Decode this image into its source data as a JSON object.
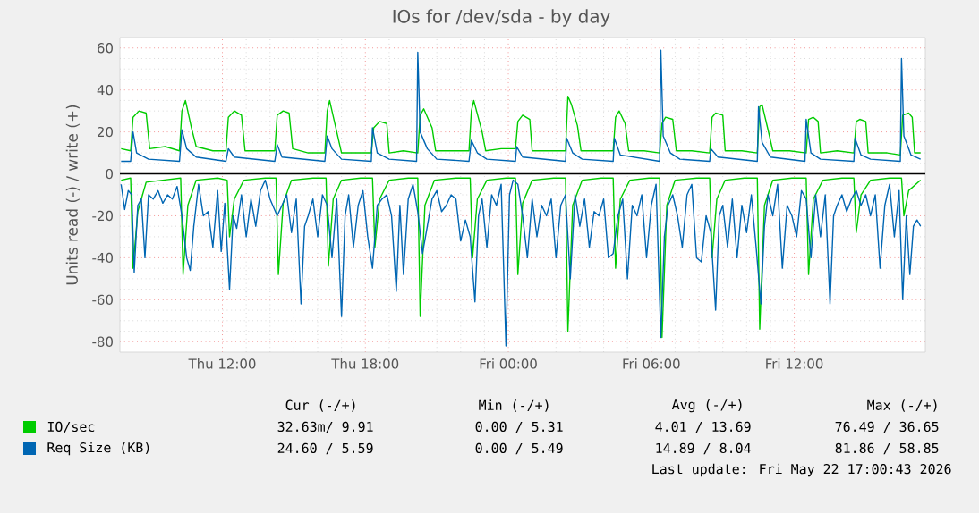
{
  "chart_data": {
    "type": "line",
    "title": "IOs for /dev/sda - by day",
    "ylabel": "Units read (-) / write (+)",
    "xlim": [
      "2026-05-21T07:42",
      "2026-05-22T17:30"
    ],
    "ylim": [
      -85,
      65
    ],
    "xticks": [
      {
        "value": "2026-05-21T12:00",
        "label": "Thu 12:00"
      },
      {
        "value": "2026-05-21T18:00",
        "label": "Thu 18:00"
      },
      {
        "value": "2026-05-22T00:00",
        "label": "Fri 00:00"
      },
      {
        "value": "2026-05-22T06:00",
        "label": "Fri 06:00"
      },
      {
        "value": "2026-05-22T12:00",
        "label": "Fri 12:00"
      }
    ],
    "yticks": [
      -80,
      -60,
      -40,
      -20,
      0,
      20,
      40,
      60
    ],
    "grid": true,
    "legend": "bottom",
    "marker": "none",
    "line_style": "solid",
    "ref_lines": [
      {
        "axis": "y",
        "value": 0,
        "color": "#000000"
      }
    ],
    "annotations": [
      "Cur (-/+)",
      "Min (-/+)",
      "Avg (-/+)",
      "Max (-/+)",
      "32.63m/  9.91",
      "0.00 /  5.31",
      "4.01 / 13.69",
      "76.49 / 36.65",
      "24.60 /  5.59",
      "0.00 /  5.49",
      "14.89 /  8.04",
      "81.86 / 58.85",
      "Last update: Fri May 22 17:00:43 2026"
    ],
    "series": [
      {
        "name": "IO/sec",
        "color": "#00cc00",
        "x": [
          "2026-05-21T07:45",
          "2026-05-21T08:09",
          "2026-05-21T08:15",
          "2026-05-21T08:30",
          "2026-05-21T08:48",
          "2026-05-21T08:57",
          "2026-05-21T09:36",
          "2026-05-21T10:12",
          "2026-05-21T10:18",
          "2026-05-21T10:27",
          "2026-05-21T10:42",
          "2026-05-21T10:54",
          "2026-05-21T11:36",
          "2026-05-21T12:09",
          "2026-05-21T12:15",
          "2026-05-21T12:30",
          "2026-05-21T12:48",
          "2026-05-21T12:57",
          "2026-05-21T13:36",
          "2026-05-21T14:12",
          "2026-05-21T14:18",
          "2026-05-21T14:33",
          "2026-05-21T14:48",
          "2026-05-21T14:57",
          "2026-05-21T15:36",
          "2026-05-21T16:18",
          "2026-05-21T16:24",
          "2026-05-21T16:30",
          "2026-05-21T16:48",
          "2026-05-21T17:00",
          "2026-05-21T17:36",
          "2026-05-21T18:15",
          "2026-05-21T18:21",
          "2026-05-21T18:36",
          "2026-05-21T18:54",
          "2026-05-21T19:00",
          "2026-05-21T19:36",
          "2026-05-21T20:12",
          "2026-05-21T20:18",
          "2026-05-21T20:27",
          "2026-05-21T20:48",
          "2026-05-21T20:57",
          "2026-05-21T21:36",
          "2026-05-21T22:21",
          "2026-05-21T22:27",
          "2026-05-21T22:33",
          "2026-05-21T22:54",
          "2026-05-21T23:03",
          "2026-05-21T23:42",
          "2026-05-22T00:18",
          "2026-05-22T00:24",
          "2026-05-22T00:36",
          "2026-05-22T00:54",
          "2026-05-22T01:00",
          "2026-05-22T01:42",
          "2026-05-22T02:24",
          "2026-05-22T02:30",
          "2026-05-22T02:39",
          "2026-05-22T02:54",
          "2026-05-22T03:03",
          "2026-05-22T03:42",
          "2026-05-22T04:24",
          "2026-05-22T04:30",
          "2026-05-22T04:39",
          "2026-05-22T04:54",
          "2026-05-22T05:03",
          "2026-05-22T05:42",
          "2026-05-22T06:21",
          "2026-05-22T06:27",
          "2026-05-22T06:36",
          "2026-05-22T06:54",
          "2026-05-22T07:03",
          "2026-05-22T07:42",
          "2026-05-22T08:27",
          "2026-05-22T08:33",
          "2026-05-22T08:42",
          "2026-05-22T09:00",
          "2026-05-22T09:06",
          "2026-05-22T09:48",
          "2026-05-22T10:27",
          "2026-05-22T10:33",
          "2026-05-22T10:39",
          "2026-05-22T10:54",
          "2026-05-22T11:06",
          "2026-05-22T11:48",
          "2026-05-22T12:30",
          "2026-05-22T12:36",
          "2026-05-22T12:48",
          "2026-05-22T13:00",
          "2026-05-22T13:06",
          "2026-05-22T13:48",
          "2026-05-22T14:30",
          "2026-05-22T14:36",
          "2026-05-22T14:45",
          "2026-05-22T15:00",
          "2026-05-22T15:06",
          "2026-05-22T15:54",
          "2026-05-22T16:27",
          "2026-05-22T16:33",
          "2026-05-22T16:48",
          "2026-05-22T16:57",
          "2026-05-22T17:03",
          "2026-05-22T17:18"
        ],
        "values": [
          12,
          11,
          27,
          30,
          29,
          12,
          13,
          11,
          30,
          35,
          22,
          13,
          11,
          11,
          27,
          30,
          28,
          11,
          11,
          11,
          28,
          30,
          29,
          12,
          10,
          10,
          30,
          35,
          20,
          10,
          10,
          10,
          22,
          25,
          24,
          10,
          11,
          10,
          28,
          31,
          22,
          11,
          11,
          11,
          30,
          35,
          20,
          11,
          12,
          12,
          25,
          28,
          26,
          11,
          11,
          11,
          37,
          33,
          23,
          11,
          11,
          11,
          27,
          30,
          24,
          11,
          11,
          10,
          24,
          27,
          26,
          11,
          11,
          10,
          27,
          29,
          28,
          11,
          11,
          10,
          32,
          33,
          21,
          11,
          11,
          10,
          26,
          27,
          25,
          10,
          11,
          10,
          25,
          26,
          25,
          10,
          10,
          9,
          28,
          29,
          27,
          10,
          10
        ]
      },
      {
        "name": "Req Size (KB)",
        "color": "#0066b3",
        "x": [
          "2026-05-21T07:45",
          "2026-05-21T08:09",
          "2026-05-21T08:15",
          "2026-05-21T08:24",
          "2026-05-21T08:54",
          "2026-05-21T10:12",
          "2026-05-21T10:18",
          "2026-05-21T10:30",
          "2026-05-21T10:54",
          "2026-05-21T12:09",
          "2026-05-21T12:15",
          "2026-05-21T12:30",
          "2026-05-21T14:12",
          "2026-05-21T14:18",
          "2026-05-21T14:30",
          "2026-05-21T16:18",
          "2026-05-21T16:24",
          "2026-05-21T16:36",
          "2026-05-21T17:00",
          "2026-05-21T18:15",
          "2026-05-21T18:18",
          "2026-05-21T18:30",
          "2026-05-21T19:00",
          "2026-05-21T20:09",
          "2026-05-21T20:12",
          "2026-05-21T20:18",
          "2026-05-21T20:36",
          "2026-05-21T21:00",
          "2026-05-21T22:21",
          "2026-05-21T22:27",
          "2026-05-21T22:42",
          "2026-05-21T23:06",
          "2026-05-22T00:18",
          "2026-05-22T00:21",
          "2026-05-22T00:36",
          "2026-05-22T02:24",
          "2026-05-22T02:27",
          "2026-05-22T02:42",
          "2026-05-22T03:06",
          "2026-05-22T04:24",
          "2026-05-22T04:27",
          "2026-05-22T04:42",
          "2026-05-22T06:21",
          "2026-05-22T06:24",
          "2026-05-22T06:30",
          "2026-05-22T06:48",
          "2026-05-22T07:12",
          "2026-05-22T08:27",
          "2026-05-22T08:30",
          "2026-05-22T08:48",
          "2026-05-22T10:27",
          "2026-05-22T10:30",
          "2026-05-22T10:39",
          "2026-05-22T11:00",
          "2026-05-22T12:27",
          "2026-05-22T12:30",
          "2026-05-22T12:42",
          "2026-05-22T13:06",
          "2026-05-22T14:30",
          "2026-05-22T14:33",
          "2026-05-22T14:48",
          "2026-05-22T15:12",
          "2026-05-22T16:27",
          "2026-05-22T16:30",
          "2026-05-22T16:36",
          "2026-05-22T16:54",
          "2026-05-22T17:18"
        ],
        "values": [
          6,
          6,
          20,
          10,
          7,
          6,
          21,
          12,
          8,
          6,
          12,
          8,
          6,
          14,
          8,
          6,
          18,
          12,
          7,
          6,
          22,
          10,
          7,
          6,
          58,
          20,
          12,
          7,
          6,
          16,
          10,
          7,
          6,
          13,
          8,
          6,
          17,
          10,
          7,
          6,
          17,
          9,
          6,
          59,
          18,
          10,
          7,
          6,
          12,
          8,
          6,
          32,
          15,
          8,
          6,
          26,
          10,
          7,
          6,
          17,
          9,
          7,
          6,
          55,
          18,
          9,
          7
        ]
      },
      {
        "color": "#00cc00",
        "x": [
          "2026-05-21T07:45",
          "2026-05-21T08:09",
          "2026-05-21T08:15",
          "2026-05-21T08:27",
          "2026-05-21T08:48",
          "2026-05-21T09:30",
          "2026-05-21T10:15",
          "2026-05-21T10:21",
          "2026-05-21T10:33",
          "2026-05-21T10:54",
          "2026-05-21T11:48",
          "2026-05-21T12:12",
          "2026-05-21T12:18",
          "2026-05-21T12:30",
          "2026-05-21T12:54",
          "2026-05-21T13:48",
          "2026-05-21T14:15",
          "2026-05-21T14:21",
          "2026-05-21T14:33",
          "2026-05-21T14:54",
          "2026-05-21T15:48",
          "2026-05-21T16:21",
          "2026-05-21T16:27",
          "2026-05-21T16:39",
          "2026-05-21T17:00",
          "2026-05-21T17:48",
          "2026-05-21T18:18",
          "2026-05-21T18:24",
          "2026-05-21T18:36",
          "2026-05-21T19:00",
          "2026-05-21T19:48",
          "2026-05-21T20:12",
          "2026-05-21T20:18",
          "2026-05-21T20:30",
          "2026-05-21T20:54",
          "2026-05-21T21:48",
          "2026-05-21T22:24",
          "2026-05-21T22:30",
          "2026-05-21T22:42",
          "2026-05-21T23:06",
          "2026-05-21T23:54",
          "2026-05-22T00:18",
          "2026-05-22T00:24",
          "2026-05-22T00:36",
          "2026-05-22T01:00",
          "2026-05-22T01:54",
          "2026-05-22T02:24",
          "2026-05-22T02:30",
          "2026-05-22T02:42",
          "2026-05-22T03:06",
          "2026-05-22T03:54",
          "2026-05-22T04:24",
          "2026-05-22T04:30",
          "2026-05-22T04:42",
          "2026-05-22T05:06",
          "2026-05-22T05:54",
          "2026-05-22T06:21",
          "2026-05-22T06:27",
          "2026-05-22T06:39",
          "2026-05-22T07:00",
          "2026-05-22T07:54",
          "2026-05-22T08:27",
          "2026-05-22T08:33",
          "2026-05-22T08:45",
          "2026-05-22T09:06",
          "2026-05-22T09:54",
          "2026-05-22T10:27",
          "2026-05-22T10:33",
          "2026-05-22T10:45",
          "2026-05-22T11:06",
          "2026-05-22T11:54",
          "2026-05-22T12:30",
          "2026-05-22T12:36",
          "2026-05-22T12:48",
          "2026-05-22T13:12",
          "2026-05-22T14:00",
          "2026-05-22T14:30",
          "2026-05-22T14:36",
          "2026-05-22T14:48",
          "2026-05-22T15:12",
          "2026-05-22T16:00",
          "2026-05-22T16:30",
          "2026-05-22T16:36",
          "2026-05-22T16:48",
          "2026-05-22T17:18"
        ],
        "values": [
          -3,
          -2,
          -45,
          -18,
          -4,
          -3,
          -2,
          -48,
          -15,
          -3,
          -2,
          -3,
          -30,
          -12,
          -3,
          -2,
          -2,
          -48,
          -14,
          -3,
          -2,
          -2,
          -44,
          -12,
          -3,
          -2,
          -2,
          -35,
          -12,
          -3,
          -2,
          -2,
          -68,
          -15,
          -3,
          -2,
          -2,
          -40,
          -12,
          -3,
          -2,
          -2,
          -48,
          -14,
          -3,
          -2,
          -2,
          -75,
          -15,
          -3,
          -2,
          -2,
          -45,
          -12,
          -3,
          -2,
          -2,
          -78,
          -15,
          -3,
          -2,
          -2,
          -40,
          -12,
          -3,
          -2,
          -2,
          -74,
          -15,
          -3,
          -2,
          -2,
          -48,
          -12,
          -3,
          -2,
          -2,
          -28,
          -10,
          -3,
          -2,
          -2,
          -20,
          -8,
          -3
        ]
      },
      {
        "color": "#0066b3",
        "x": [
          "2026-05-21T07:45",
          "2026-05-21T07:54",
          "2026-05-21T08:03",
          "2026-05-21T08:12",
          "2026-05-21T08:18",
          "2026-05-21T08:27",
          "2026-05-21T08:36",
          "2026-05-21T08:45",
          "2026-05-21T08:54",
          "2026-05-21T09:06",
          "2026-05-21T09:18",
          "2026-05-21T09:30",
          "2026-05-21T09:42",
          "2026-05-21T09:54",
          "2026-05-21T10:06",
          "2026-05-21T10:18",
          "2026-05-21T10:30",
          "2026-05-21T10:39",
          "2026-05-21T10:48",
          "2026-05-21T11:00",
          "2026-05-21T11:12",
          "2026-05-21T11:24",
          "2026-05-21T11:36",
          "2026-05-21T11:48",
          "2026-05-21T11:57",
          "2026-05-21T12:06",
          "2026-05-21T12:18",
          "2026-05-21T12:27",
          "2026-05-21T12:36",
          "2026-05-21T12:48",
          "2026-05-21T13:00",
          "2026-05-21T13:12",
          "2026-05-21T13:24",
          "2026-05-21T13:36",
          "2026-05-21T13:48",
          "2026-05-21T14:00",
          "2026-05-21T14:18",
          "2026-05-21T14:30",
          "2026-05-21T14:42",
          "2026-05-21T14:54",
          "2026-05-21T15:06",
          "2026-05-21T15:18",
          "2026-05-21T15:27",
          "2026-05-21T15:36",
          "2026-05-21T15:48",
          "2026-05-21T16:00",
          "2026-05-21T16:12",
          "2026-05-21T16:24",
          "2026-05-21T16:36",
          "2026-05-21T16:48",
          "2026-05-21T17:00",
          "2026-05-21T17:09",
          "2026-05-21T17:18",
          "2026-05-21T17:30",
          "2026-05-21T17:42",
          "2026-05-21T17:54",
          "2026-05-21T18:06",
          "2026-05-21T18:18",
          "2026-05-21T18:30",
          "2026-05-21T18:42",
          "2026-05-21T18:54",
          "2026-05-21T19:06",
          "2026-05-21T19:18",
          "2026-05-21T19:27",
          "2026-05-21T19:36",
          "2026-05-21T19:48",
          "2026-05-21T20:00",
          "2026-05-21T20:12",
          "2026-05-21T20:24",
          "2026-05-21T20:36",
          "2026-05-21T20:48",
          "2026-05-21T21:00",
          "2026-05-21T21:12",
          "2026-05-21T21:24",
          "2026-05-21T21:36",
          "2026-05-21T21:48",
          "2026-05-21T22:00",
          "2026-05-21T22:12",
          "2026-05-21T22:24",
          "2026-05-21T22:36",
          "2026-05-21T22:45",
          "2026-05-21T22:54",
          "2026-05-21T23:06",
          "2026-05-21T23:18",
          "2026-05-21T23:30",
          "2026-05-21T23:42",
          "2026-05-21T23:54",
          "2026-05-22T00:03",
          "2026-05-22T00:12",
          "2026-05-22T00:24",
          "2026-05-22T00:36",
          "2026-05-22T00:48",
          "2026-05-22T01:00",
          "2026-05-22T01:12",
          "2026-05-22T01:24",
          "2026-05-22T01:36",
          "2026-05-22T01:48",
          "2026-05-22T02:00",
          "2026-05-22T02:12",
          "2026-05-22T02:24",
          "2026-05-22T02:36",
          "2026-05-22T02:48",
          "2026-05-22T03:00",
          "2026-05-22T03:12",
          "2026-05-22T03:24",
          "2026-05-22T03:36",
          "2026-05-22T03:48",
          "2026-05-22T04:00",
          "2026-05-22T04:12",
          "2026-05-22T04:24",
          "2026-05-22T04:36",
          "2026-05-22T04:48",
          "2026-05-22T05:00",
          "2026-05-22T05:12",
          "2026-05-22T05:24",
          "2026-05-22T05:36",
          "2026-05-22T05:48",
          "2026-05-22T06:00",
          "2026-05-22T06:12",
          "2026-05-22T06:24",
          "2026-05-22T06:33",
          "2026-05-22T06:42",
          "2026-05-22T06:54",
          "2026-05-22T07:06",
          "2026-05-22T07:18",
          "2026-05-22T07:30",
          "2026-05-22T07:42",
          "2026-05-22T07:54",
          "2026-05-22T08:06",
          "2026-05-22T08:18",
          "2026-05-22T08:30",
          "2026-05-22T08:42",
          "2026-05-22T08:51",
          "2026-05-22T09:00",
          "2026-05-22T09:12",
          "2026-05-22T09:24",
          "2026-05-22T09:36",
          "2026-05-22T09:48",
          "2026-05-22T10:00",
          "2026-05-22T10:12",
          "2026-05-22T10:24",
          "2026-05-22T10:36",
          "2026-05-22T10:45",
          "2026-05-22T10:54",
          "2026-05-22T11:06",
          "2026-05-22T11:18",
          "2026-05-22T11:30",
          "2026-05-22T11:42",
          "2026-05-22T11:54",
          "2026-05-22T12:06",
          "2026-05-22T12:18",
          "2026-05-22T12:30",
          "2026-05-22T12:42",
          "2026-05-22T12:54",
          "2026-05-22T13:06",
          "2026-05-22T13:18",
          "2026-05-22T13:30",
          "2026-05-22T13:39",
          "2026-05-22T13:48",
          "2026-05-22T14:00",
          "2026-05-22T14:12",
          "2026-05-22T14:24",
          "2026-05-22T14:36",
          "2026-05-22T14:48",
          "2026-05-22T15:00",
          "2026-05-22T15:12",
          "2026-05-22T15:24",
          "2026-05-22T15:36",
          "2026-05-22T15:48",
          "2026-05-22T16:00",
          "2026-05-22T16:12",
          "2026-05-22T16:24",
          "2026-05-22T16:33",
          "2026-05-22T16:42",
          "2026-05-22T16:51",
          "2026-05-22T17:00",
          "2026-05-22T17:09",
          "2026-05-22T17:18"
        ],
        "values": [
          -5,
          -17,
          -8,
          -10,
          -47,
          -15,
          -12,
          -40,
          -10,
          -12,
          -8,
          -14,
          -10,
          -12,
          -6,
          -20,
          -40,
          -46,
          -25,
          -5,
          -20,
          -18,
          -35,
          -8,
          -37,
          -14,
          -55,
          -20,
          -26,
          -10,
          -30,
          -12,
          -25,
          -8,
          -3,
          -12,
          -20,
          -15,
          -10,
          -28,
          -12,
          -62,
          -25,
          -20,
          -12,
          -30,
          -10,
          -15,
          -40,
          -12,
          -68,
          -20,
          -10,
          -35,
          -15,
          -8,
          -30,
          -45,
          -15,
          -12,
          -10,
          -20,
          -56,
          -15,
          -48,
          -12,
          -5,
          -18,
          -38,
          -25,
          -12,
          -8,
          -18,
          -15,
          -10,
          -12,
          -32,
          -22,
          -30,
          -61,
          -20,
          -12,
          -35,
          -10,
          -15,
          -5,
          -82,
          -10,
          -3,
          -5,
          -20,
          -40,
          -12,
          -30,
          -15,
          -20,
          -12,
          -40,
          -15,
          -10,
          -50,
          -10,
          -25,
          -12,
          -35,
          -18,
          -20,
          -12,
          -40,
          -38,
          -20,
          -12,
          -50,
          -15,
          -20,
          -10,
          -40,
          -15,
          -5,
          -78,
          -30,
          -15,
          -10,
          -20,
          -35,
          -10,
          -5,
          -40,
          -42,
          -20,
          -28,
          -65,
          -20,
          -15,
          -35,
          -12,
          -40,
          -15,
          -28,
          -10,
          -35,
          -62,
          -25,
          -10,
          -20,
          -5,
          -45,
          -15,
          -20,
          -30,
          -8,
          -12,
          -40,
          -10,
          -30,
          -10,
          -62,
          -20,
          -15,
          -10,
          -18,
          -12,
          -8,
          -15,
          -10,
          -20,
          -10,
          -45,
          -15,
          -5,
          -30,
          -8,
          -60,
          -20,
          -48,
          -25,
          -22,
          -25
        ]
      }
    ]
  }
}
